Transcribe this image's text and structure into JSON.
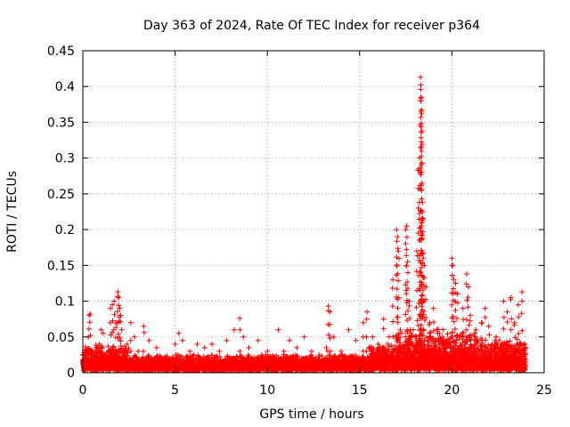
{
  "chart_data": {
    "type": "scatter",
    "title": "Day 363 of 2024, Rate Of TEC Index for receiver p364",
    "xlabel": "GPS time / hours",
    "ylabel": "ROTI / TECUs",
    "xlim": [
      0,
      25
    ],
    "ylim": [
      0,
      0.45
    ],
    "x_ticks": [
      0,
      5,
      10,
      15,
      20,
      25
    ],
    "x_tick_labels": [
      "0",
      "5",
      "10",
      "15",
      "20",
      "25"
    ],
    "y_ticks": [
      0,
      0.05,
      0.1,
      0.15,
      0.2,
      0.25,
      0.3,
      0.35,
      0.4,
      0.45
    ],
    "y_tick_labels": [
      "0",
      "0.05",
      "0.1",
      "0.15",
      "0.2",
      "0.25",
      "0.3",
      "0.35",
      "0.4",
      "0.45"
    ],
    "grid": true,
    "marker": "+",
    "color": "#ff0000",
    "series": [
      {
        "name": "ROTI",
        "points": [
          [
            0.1,
            0.01
          ],
          [
            0.2,
            0.03
          ],
          [
            0.3,
            0.05
          ],
          [
            0.35,
            0.08
          ],
          [
            0.4,
            0.082
          ],
          [
            0.5,
            0.03
          ],
          [
            0.7,
            0.02
          ],
          [
            0.9,
            0.04
          ],
          [
            1.0,
            0.06
          ],
          [
            1.1,
            0.055
          ],
          [
            1.2,
            0.025
          ],
          [
            1.4,
            0.03
          ],
          [
            1.5,
            0.09
          ],
          [
            1.6,
            0.095
          ],
          [
            1.7,
            0.1
          ],
          [
            1.8,
            0.07
          ],
          [
            1.9,
            0.113
          ],
          [
            1.95,
            0.105
          ],
          [
            2.0,
            0.09
          ],
          [
            2.05,
            0.08
          ],
          [
            2.1,
            0.06
          ],
          [
            2.2,
            0.03
          ],
          [
            2.4,
            0.04
          ],
          [
            2.6,
            0.07
          ],
          [
            2.8,
            0.05
          ],
          [
            3.0,
            0.03
          ],
          [
            3.3,
            0.065
          ],
          [
            3.6,
            0.045
          ],
          [
            4.0,
            0.035
          ],
          [
            4.5,
            0.02
          ],
          [
            5.0,
            0.04
          ],
          [
            5.2,
            0.055
          ],
          [
            5.4,
            0.045
          ],
          [
            5.8,
            0.03
          ],
          [
            6.2,
            0.04
          ],
          [
            6.6,
            0.035
          ],
          [
            7.0,
            0.04
          ],
          [
            7.4,
            0.03
          ],
          [
            7.8,
            0.045
          ],
          [
            8.2,
            0.06
          ],
          [
            8.5,
            0.076
          ],
          [
            8.7,
            0.05
          ],
          [
            9.0,
            0.035
          ],
          [
            9.5,
            0.045
          ],
          [
            10.0,
            0.03
          ],
          [
            10.3,
            0.02
          ],
          [
            10.6,
            0.06
          ],
          [
            10.9,
            0.03
          ],
          [
            11.2,
            0.045
          ],
          [
            11.6,
            0.035
          ],
          [
            12.0,
            0.05
          ],
          [
            12.4,
            0.03
          ],
          [
            12.8,
            0.025
          ],
          [
            13.2,
            0.035
          ],
          [
            13.3,
            0.093
          ],
          [
            13.4,
            0.085
          ],
          [
            13.6,
            0.05
          ],
          [
            14.0,
            0.03
          ],
          [
            14.4,
            0.06
          ],
          [
            14.8,
            0.045
          ],
          [
            15.2,
            0.07
          ],
          [
            15.4,
            0.085
          ],
          [
            15.7,
            0.05
          ],
          [
            16.0,
            0.04
          ],
          [
            16.3,
            0.075
          ],
          [
            16.6,
            0.05
          ],
          [
            16.8,
            0.13
          ],
          [
            17.0,
            0.2
          ],
          [
            17.05,
            0.19
          ],
          [
            17.1,
            0.17
          ],
          [
            17.2,
            0.06
          ],
          [
            17.5,
            0.2
          ],
          [
            17.55,
            0.205
          ],
          [
            17.6,
            0.155
          ],
          [
            17.7,
            0.1
          ],
          [
            17.9,
            0.06
          ],
          [
            18.1,
            0.17
          ],
          [
            18.2,
            0.285
          ],
          [
            18.25,
            0.3
          ],
          [
            18.3,
            0.413
          ],
          [
            18.32,
            0.402
          ],
          [
            18.34,
            0.385
          ],
          [
            18.36,
            0.362
          ],
          [
            18.38,
            0.338
          ],
          [
            18.4,
            0.225
          ],
          [
            18.42,
            0.215
          ],
          [
            18.45,
            0.16
          ],
          [
            18.5,
            0.15
          ],
          [
            18.6,
            0.12
          ],
          [
            18.8,
            0.07
          ],
          [
            19.0,
            0.09
          ],
          [
            19.2,
            0.06
          ],
          [
            19.5,
            0.05
          ],
          [
            19.8,
            0.04
          ],
          [
            20.0,
            0.16
          ],
          [
            20.05,
            0.15
          ],
          [
            20.1,
            0.13
          ],
          [
            20.2,
            0.125
          ],
          [
            20.3,
            0.11
          ],
          [
            20.6,
            0.09
          ],
          [
            20.8,
            0.138
          ],
          [
            20.9,
            0.12
          ],
          [
            21.0,
            0.08
          ],
          [
            21.3,
            0.06
          ],
          [
            21.6,
            0.07
          ],
          [
            21.8,
            0.09
          ],
          [
            22.0,
            0.065
          ],
          [
            22.4,
            0.05
          ],
          [
            22.8,
            0.1
          ],
          [
            23.0,
            0.085
          ],
          [
            23.2,
            0.105
          ],
          [
            23.4,
            0.07
          ],
          [
            23.6,
            0.095
          ],
          [
            23.8,
            0.113
          ],
          [
            23.9,
            0.03
          ],
          [
            24.0,
            0.015
          ]
        ]
      }
    ]
  }
}
